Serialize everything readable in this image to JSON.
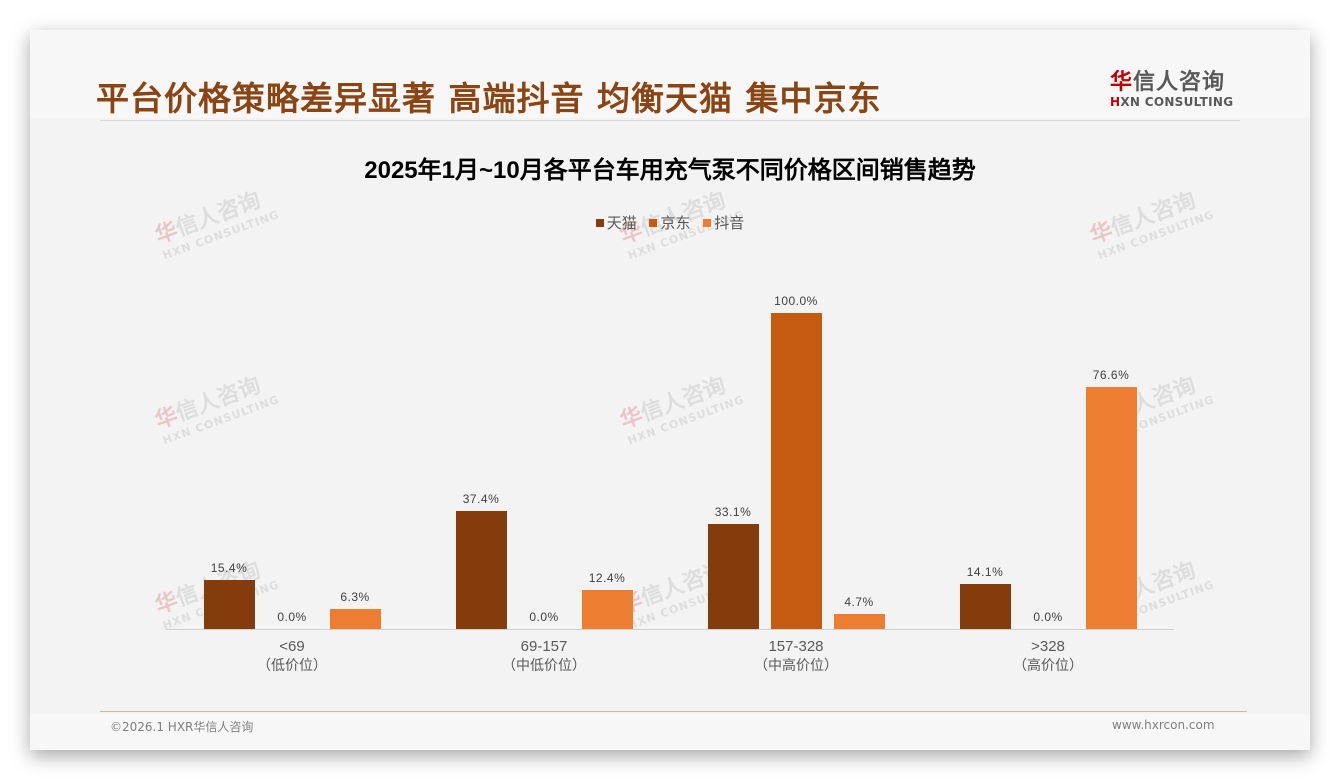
{
  "slide": {
    "headline": "平台价格策略差异显著 高端抖音 均衡天猫 集中京东",
    "logo": {
      "accent_char": "华",
      "cn_rest": "信人咨询",
      "en_accent": "H",
      "en_rest": "XN CONSULTING"
    },
    "watermark": {
      "accent_char": "华",
      "cn_rest": "信人咨询",
      "en": "HXN CONSULTING"
    },
    "footer": {
      "copyright": "©2026.1 HXR华信人咨询",
      "website": "www.hxrcon.com"
    }
  },
  "colors": {
    "tmall": "#843c0c",
    "jd": "#c55a11",
    "douyin": "#ed7d31",
    "headline": "#8a4514"
  },
  "chart_data": {
    "type": "bar",
    "title": "2025年1月~10月各平台车用充气泵不同价格区间销售趋势",
    "xlabel": "",
    "ylabel": "",
    "ylim": [
      0,
      100
    ],
    "grid": false,
    "legend_position": "top",
    "categories": [
      "<69",
      "69-157",
      "157-328",
      ">328"
    ],
    "category_sublabels": [
      "（低价位）",
      "（中低价位）",
      "（中高价位）",
      "（高价位）"
    ],
    "series": [
      {
        "name": "天猫",
        "values": [
          15.4,
          37.4,
          33.1,
          14.1
        ],
        "labels": [
          "15.4%",
          "37.4%",
          "33.1%",
          "14.1%"
        ]
      },
      {
        "name": "京东",
        "values": [
          0.0,
          0.0,
          100.0,
          0.0
        ],
        "labels": [
          "0.0%",
          "0.0%",
          "100.0%",
          "0.0%"
        ]
      },
      {
        "name": "抖音",
        "values": [
          6.3,
          12.4,
          4.7,
          76.6
        ],
        "labels": [
          "6.3%",
          "12.4%",
          "4.7%",
          "76.6%"
        ]
      }
    ]
  }
}
